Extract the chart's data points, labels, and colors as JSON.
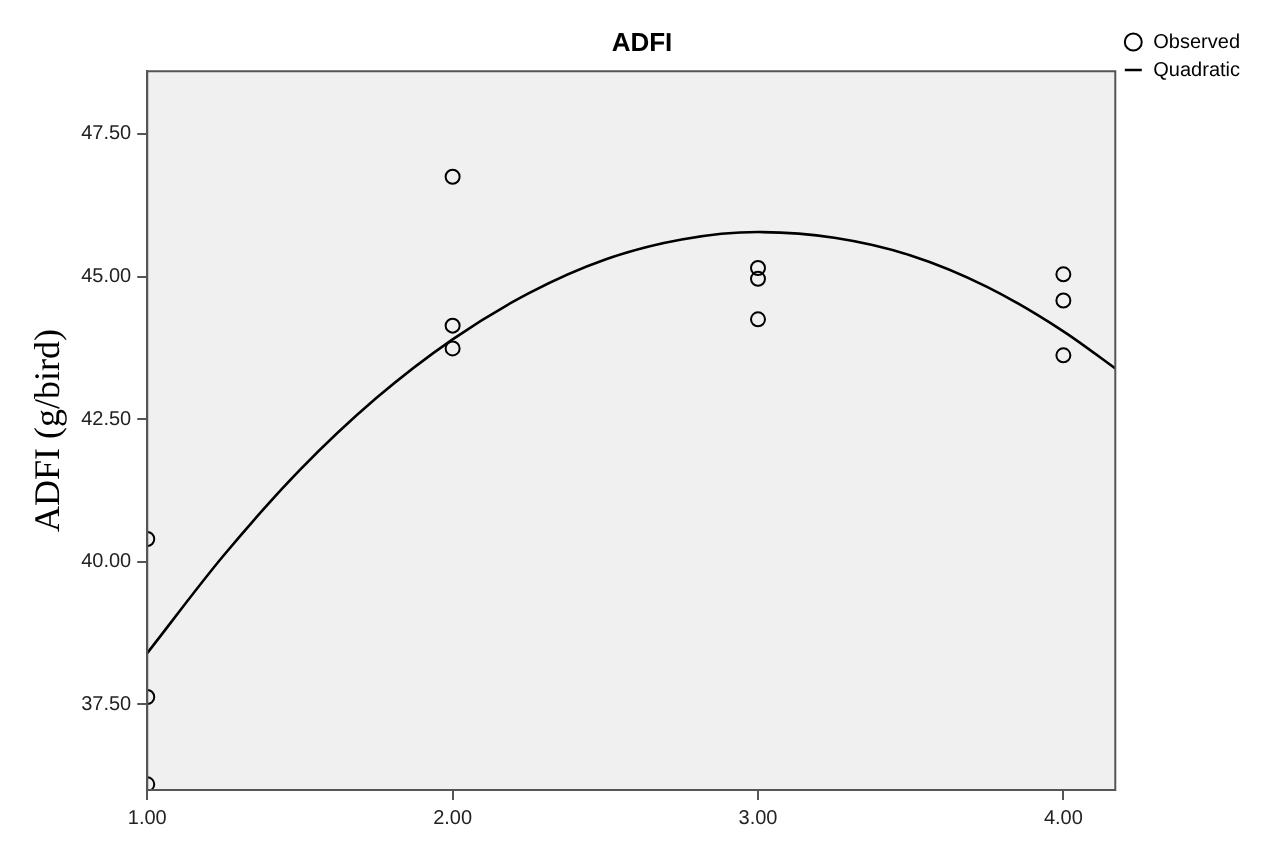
{
  "chart_data": {
    "type": "scatter",
    "title": "ADFI",
    "ylabel": "ADFI (g/bird)",
    "xlim": [
      1.0,
      4.17
    ],
    "ylim": [
      36.0,
      48.6
    ],
    "xticks": [
      {
        "value": 1,
        "label": "1.00"
      },
      {
        "value": 2,
        "label": "2.00"
      },
      {
        "value": 3,
        "label": "3.00"
      },
      {
        "value": 4,
        "label": "4.00"
      }
    ],
    "yticks": [
      {
        "value": 37.5,
        "label": "37.50"
      },
      {
        "value": 40,
        "label": "40.00"
      },
      {
        "value": 42.5,
        "label": "42.50"
      },
      {
        "value": 45,
        "label": "45.00"
      },
      {
        "value": 47.5,
        "label": "47.50"
      }
    ],
    "grid": false,
    "legend": "top right",
    "marker": "circle",
    "series": [
      {
        "name": "Observed",
        "type": "scatter",
        "color": "#000000",
        "x": [
          1,
          1,
          1,
          2,
          2,
          2,
          3,
          3,
          3,
          4,
          4,
          4
        ],
        "values": [
          40.4,
          37.63,
          36.1,
          46.75,
          44.14,
          43.74,
          45.15,
          44.96,
          44.25,
          45.04,
          44.58,
          43.62
        ]
      },
      {
        "name": "Quadratic",
        "type": "line",
        "marker": "none",
        "color": "#000000",
        "x": [
          1.0,
          1.25,
          1.5,
          1.75,
          2.0,
          2.25,
          2.5,
          2.75,
          3.0,
          3.25,
          3.5,
          3.75,
          4.0,
          4.17
        ],
        "values": [
          38.4,
          40.11,
          41.61,
          42.87,
          43.9,
          44.71,
          45.3,
          45.65,
          45.78,
          45.68,
          45.37,
          44.82,
          44.04,
          43.39
        ]
      }
    ]
  }
}
